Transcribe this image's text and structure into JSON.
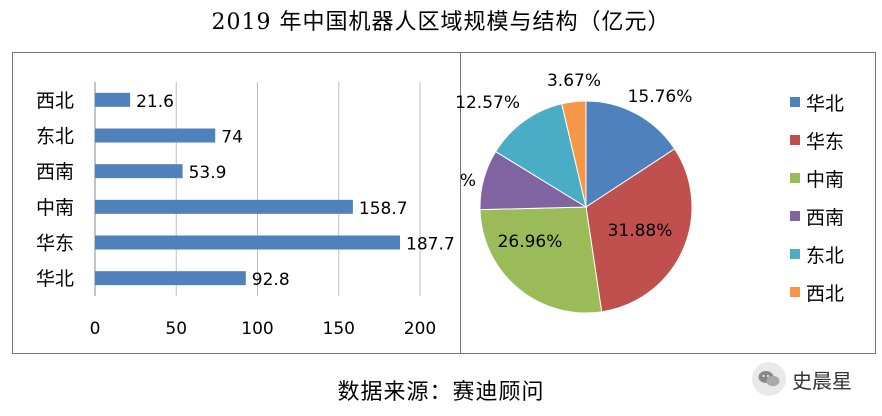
{
  "title": "2019 年中国机器人区域规模与结构（亿元）",
  "source": "数据来源：赛迪顾问",
  "watermark": "史晨星",
  "chart_data": [
    {
      "type": "bar",
      "orientation": "horizontal",
      "categories": [
        "西北",
        "东北",
        "西南",
        "中南",
        "华东",
        "华北"
      ],
      "values": [
        21.6,
        74,
        53.9,
        158.7,
        187.7,
        92.8
      ],
      "value_labels": [
        "21.6",
        "74",
        "53.9",
        "158.7",
        "187.7",
        "92.8"
      ],
      "xlim": [
        0,
        200
      ],
      "xticks": [
        0,
        50,
        100,
        150,
        200
      ],
      "grid": true,
      "color": "#4F81BD"
    },
    {
      "type": "pie",
      "slices": [
        {
          "name": "华北",
          "value": 15.76,
          "label": "15.76%",
          "color": "#4F81BD"
        },
        {
          "name": "华东",
          "value": 31.88,
          "label": "31.88%",
          "color": "#C0504D"
        },
        {
          "name": "中南",
          "value": 26.96,
          "label": "26.96%",
          "color": "#9BBB59"
        },
        {
          "name": "西南",
          "value": 9.16,
          "label": "%",
          "color": "#8064A2"
        },
        {
          "name": "东北",
          "value": 12.57,
          "label": "12.57%",
          "color": "#4BACC6"
        },
        {
          "name": "西北",
          "value": 3.67,
          "label": "3.67%",
          "color": "#F79646"
        }
      ],
      "legend": [
        "华北",
        "华东",
        "中南",
        "西南",
        "东北",
        "西北"
      ],
      "legend_position": "right"
    }
  ]
}
